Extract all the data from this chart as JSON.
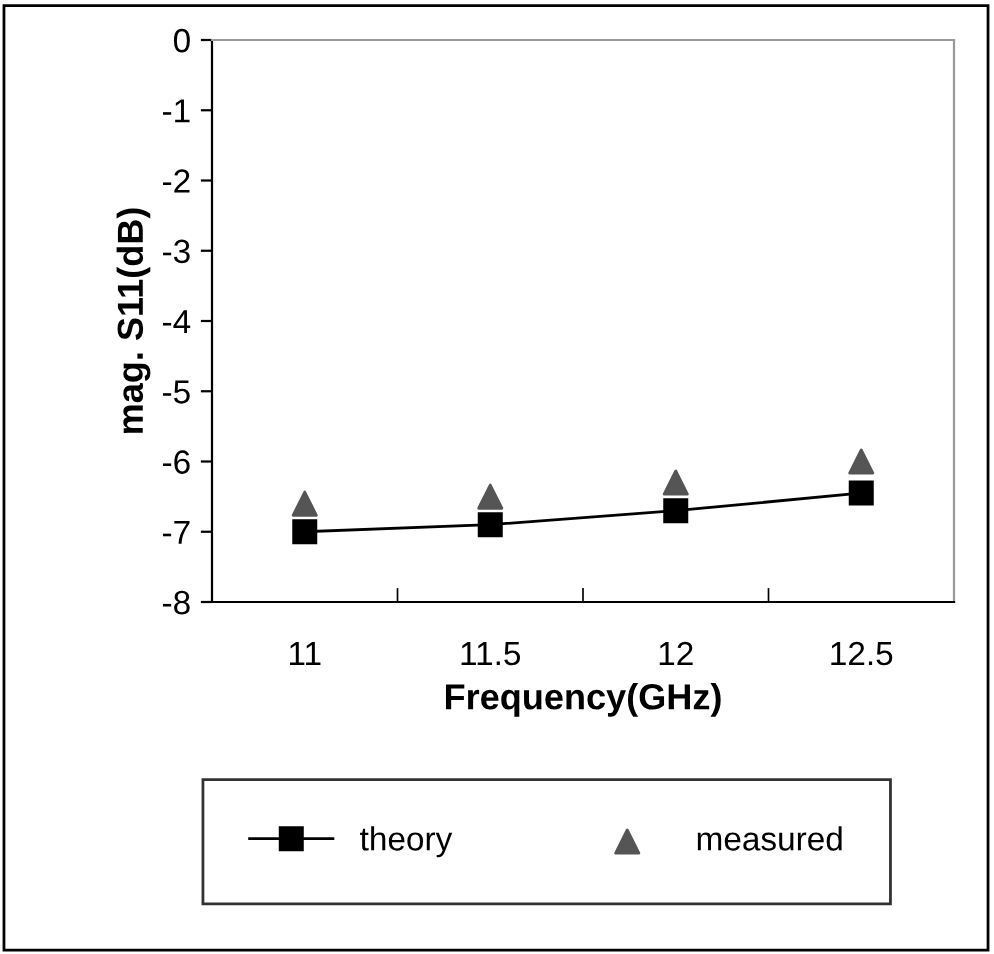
{
  "chart_data": {
    "type": "line",
    "xlabel": "Frequency(GHz)",
    "ylabel": "mag. S11(dB)",
    "categories": [
      "11",
      "11.5",
      "12",
      "12.5"
    ],
    "series": [
      {
        "name": "theory",
        "color": "#000000",
        "marker": "square",
        "values": [
          -7.0,
          -6.9,
          -6.7,
          -6.45
        ]
      },
      {
        "name": "measured",
        "type": "scatter",
        "color": "#555555",
        "marker": "triangle",
        "values": [
          -6.6,
          -6.5,
          -6.3,
          -6.0
        ]
      }
    ],
    "ylim": [
      -8,
      0
    ],
    "yticks": [
      -8,
      -7,
      -6,
      -5,
      -4,
      -3,
      -2,
      -1,
      0
    ],
    "grid": false,
    "legend": "bottom"
  }
}
